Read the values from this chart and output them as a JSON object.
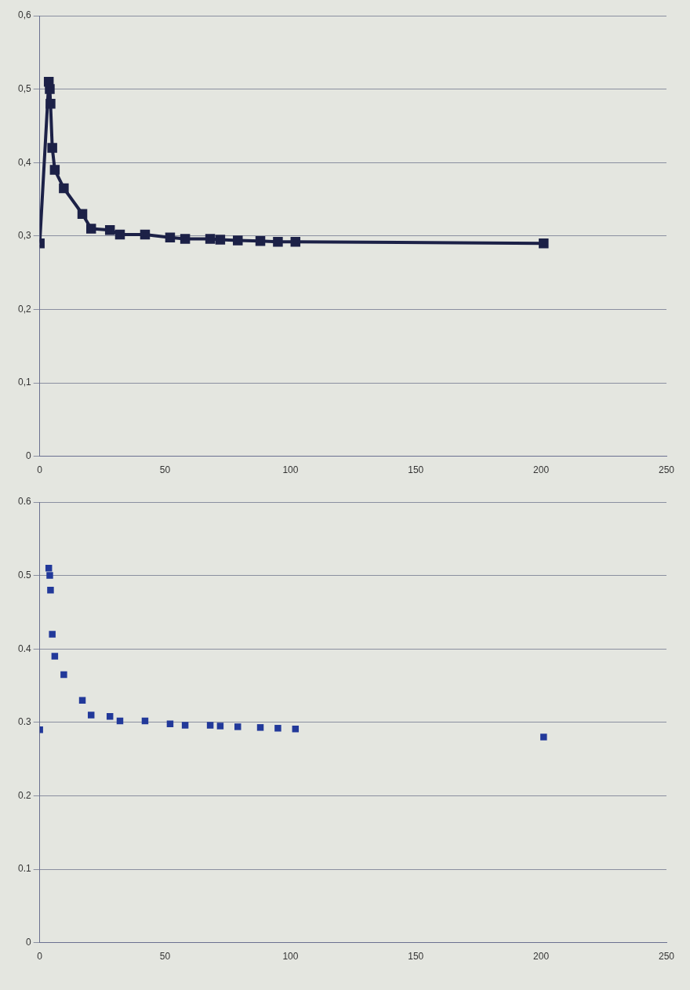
{
  "chart_data": [
    {
      "type": "line",
      "marker": "square",
      "grid": "y",
      "legend": false,
      "series": [
        {
          "color": "#1c2147",
          "x": [
            0,
            3.6,
            4,
            4.3,
            5,
            6,
            9.6,
            17,
            20.5,
            28,
            32,
            42,
            52,
            58,
            68,
            72,
            79,
            88,
            95,
            102,
            201
          ],
          "values": [
            0.29,
            0.51,
            0.5,
            0.48,
            0.42,
            0.39,
            0.365,
            0.33,
            0.31,
            0.308,
            0.302,
            0.302,
            0.298,
            0.296,
            0.296,
            0.295,
            0.294,
            0.293,
            0.292,
            0.292,
            0.29
          ]
        }
      ],
      "xlim": [
        0,
        250
      ],
      "xticks": [
        0,
        50,
        100,
        150,
        200,
        250
      ],
      "ylim": [
        0,
        0.6
      ],
      "yticks": [
        0,
        {
          "value": 0.1,
          "label": "0,1"
        },
        {
          "value": 0.2,
          "label": "0,2"
        },
        {
          "value": 0.3,
          "label": "0,3"
        },
        {
          "value": 0.4,
          "label": "0,4"
        },
        {
          "value": 0.5,
          "label": "0,5"
        },
        {
          "value": 0.6,
          "label": "0,6"
        }
      ]
    },
    {
      "type": "scatter",
      "marker": "square",
      "grid": "y",
      "legend": false,
      "series": [
        {
          "color": "#22399a",
          "x": [
            0,
            3.6,
            4,
            4.3,
            5,
            6,
            9.6,
            17,
            20.5,
            28,
            32,
            42,
            52,
            58,
            68,
            72,
            79,
            88,
            95,
            102,
            201
          ],
          "values": [
            0.29,
            0.51,
            0.5,
            0.48,
            0.42,
            0.39,
            0.365,
            0.33,
            0.31,
            0.308,
            0.302,
            0.302,
            0.298,
            0.296,
            0.296,
            0.295,
            0.294,
            0.293,
            0.292,
            0.291,
            0.28
          ]
        }
      ],
      "xlim": [
        0,
        250
      ],
      "xticks": [
        0,
        50,
        100,
        150,
        200,
        250
      ],
      "ylim": [
        0,
        0.6
      ],
      "yticks": [
        0,
        {
          "value": 0.1,
          "label": "0.1"
        },
        {
          "value": 0.2,
          "label": "0.2"
        },
        {
          "value": 0.3,
          "label": "0.3"
        },
        {
          "value": 0.4,
          "label": "0.4"
        },
        {
          "value": 0.5,
          "label": "0.5"
        },
        {
          "value": 0.6,
          "label": "0.6"
        }
      ]
    }
  ]
}
